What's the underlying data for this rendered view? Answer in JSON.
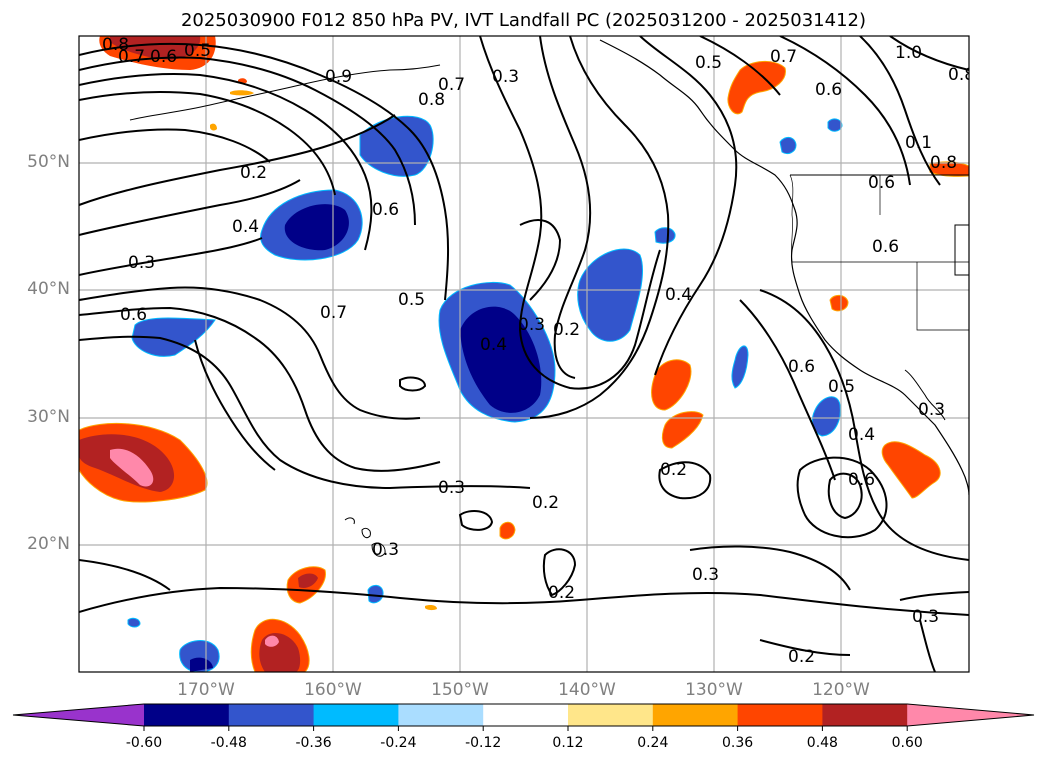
{
  "title": "2025030900 F012 850 hPa PV, IVT Landfall PC (2025031200 - 2025031412)",
  "lat_labels": [
    "50°N",
    "40°N",
    "30°N",
    "20°N"
  ],
  "lon_labels": [
    "170°W",
    "160°W",
    "150°W",
    "140°W",
    "130°W",
    "120°W"
  ],
  "colorbar": {
    "ticks": [
      "-0.60",
      "-0.48",
      "-0.36",
      "-0.24",
      "-0.12",
      "0.12",
      "0.24",
      "0.36",
      "0.48",
      "0.60"
    ],
    "colors": [
      "#9933cc",
      "#000088",
      "#3355cc",
      "#00bbff",
      "#aaddff",
      "#ffffff",
      "#ffe68a",
      "#ffa500",
      "#ff4500",
      "#b22222",
      "#ff88aa"
    ]
  },
  "contour_labels": [
    "0.8",
    "0.7",
    "0.6",
    "0.5",
    "0.9",
    "0.8",
    "0.7",
    "0.3",
    "0.5",
    "0.7",
    "0.6",
    "1.0",
    "0.2",
    "0.4",
    "0.3",
    "0.6",
    "0.7",
    "0.5",
    "0.4",
    "0.3",
    "0.2",
    "0.4",
    "0.6",
    "0.6",
    "0.6",
    "0.5",
    "0.4",
    "0.6",
    "0.8",
    "0.3",
    "0.2",
    "0.3",
    "0.2",
    "0.3",
    "0.2",
    "0.3",
    "0.2",
    "0.3",
    "0.6",
    "0.1",
    "0.8"
  ]
}
